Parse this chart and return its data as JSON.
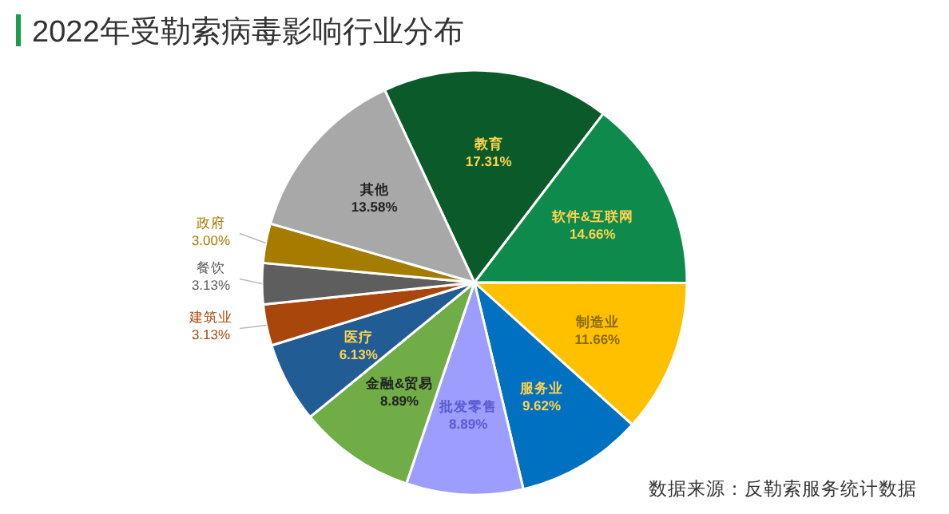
{
  "chart_data": {
    "type": "pie",
    "title": "2022年受勒索病毒影响行业分布",
    "categories": [
      "教育",
      "软件&互联网",
      "制造业",
      "服务业",
      "批发零售",
      "金融&贸易",
      "医疗",
      "建筑业",
      "餐饮",
      "政府",
      "其他"
    ],
    "values": [
      17.31,
      14.66,
      11.66,
      9.62,
      8.89,
      8.89,
      6.13,
      3.13,
      3.13,
      3.0,
      13.58
    ],
    "colors": [
      "#0b5a2a",
      "#0e8a4c",
      "#ffc000",
      "#0070c0",
      "#9d9dff",
      "#70ad47",
      "#225c94",
      "#a9460c",
      "#5e5e5e",
      "#a57c00",
      "#a8a8a8"
    ],
    "value_labels": [
      "17.31%",
      "14.66%",
      "11.66%",
      "9.62%",
      "8.89%",
      "8.89%",
      "6.13%",
      "3.13%",
      "3.13%",
      "3.00%",
      "13.58%"
    ],
    "annotations": [
      "数据来源：反勒索服务统计数据"
    ]
  }
}
